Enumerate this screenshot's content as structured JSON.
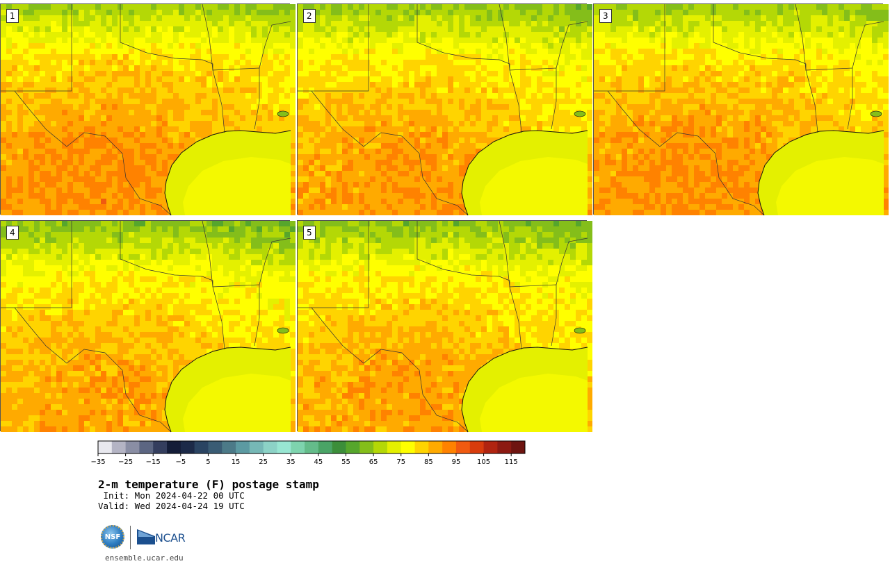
{
  "header": {
    "title": "2-m temperature (F) postage stamp",
    "init": " Init: Mon 2024-04-22 00 UTC",
    "valid": "Valid: Wed 2024-04-24 19 UTC"
  },
  "members": [
    {
      "label": "1",
      "warmth": 0.62
    },
    {
      "label": "2",
      "warmth": 0.55
    },
    {
      "label": "3",
      "warmth": 0.6
    },
    {
      "label": "4",
      "warmth": 0.5
    },
    {
      "label": "5",
      "warmth": 0.52
    }
  ],
  "colorbar": {
    "min": -35,
    "max": 120,
    "step": 5,
    "tick_labels": [
      "−35",
      "−25",
      "−15",
      "−5",
      "5",
      "15",
      "25",
      "35",
      "45",
      "55",
      "65",
      "75",
      "85",
      "95",
      "105",
      "115"
    ],
    "colors": [
      "#e8e8ee",
      "#b4b4c4",
      "#8a8ea4",
      "#5c6682",
      "#343e5e",
      "#141d38",
      "#1c2a48",
      "#2a4462",
      "#3a5c74",
      "#4c7a88",
      "#5c9aa2",
      "#76b8b6",
      "#8cd2c6",
      "#98e6d2",
      "#7ed4ae",
      "#64bc8a",
      "#4aa466",
      "#3c8e3a",
      "#56a62c",
      "#84be1a",
      "#b4d806",
      "#e4f000",
      "#ffff00",
      "#ffd400",
      "#ffaa00",
      "#ff8200",
      "#f05a10",
      "#d83c0c",
      "#b02410",
      "#8c1a12",
      "#6e1410"
    ]
  },
  "footer": {
    "nsf_text": "NSF",
    "ncar_text": "NCAR",
    "website": "ensemble.ucar.edu"
  }
}
